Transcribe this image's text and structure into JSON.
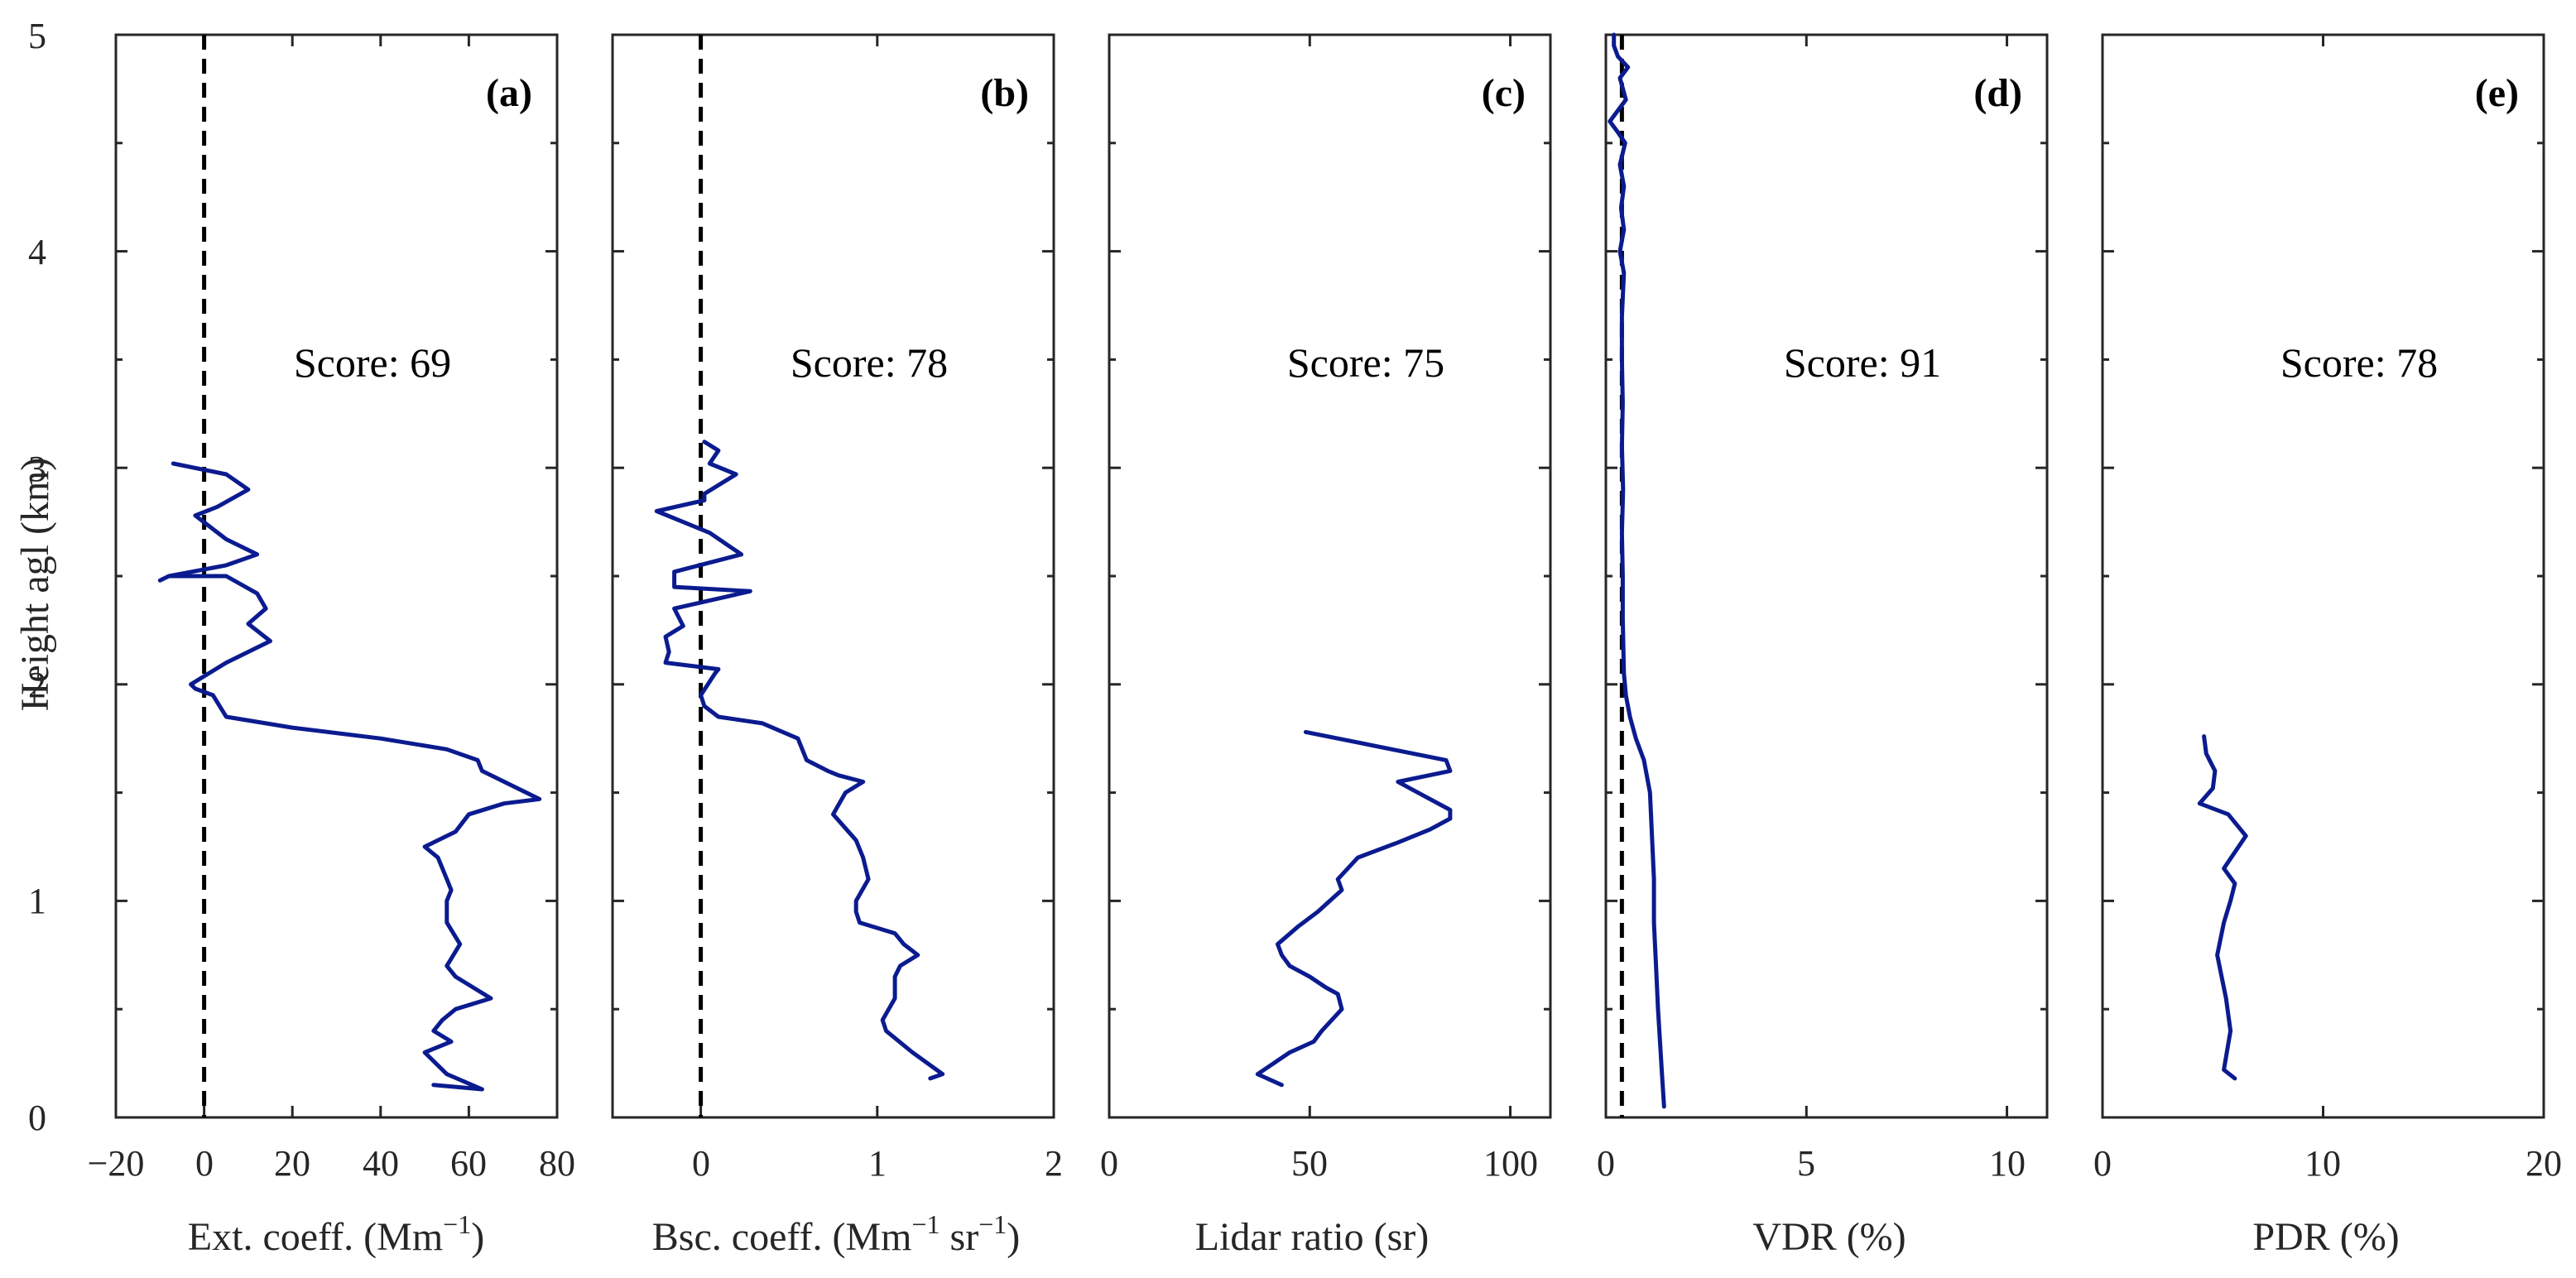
{
  "chart_data": [
    {
      "type": "line",
      "panel": "(a)",
      "score": "Score: 69",
      "xlabel": "Ext. coeff. (Mm",
      "xlabel_sup": "−1",
      "xlabel_tail": ")",
      "ylabel": "Height agl (km)",
      "xlim": [
        -20,
        80
      ],
      "ylim": [
        0,
        5
      ],
      "xticks": [
        -20,
        0,
        20,
        40,
        60,
        80
      ],
      "xtick_labels": [
        "−20",
        "0",
        "20",
        "40",
        "60",
        "80"
      ],
      "yticks": [
        0,
        1,
        2,
        3,
        4,
        5
      ],
      "ytick_labels": [
        "0",
        "1",
        "2",
        "3",
        "4",
        "5"
      ],
      "reference_x": 0,
      "series": [
        {
          "name": "extinction",
          "color": "#0b1b8f",
          "x": [
            52,
            63,
            55,
            50,
            56,
            52,
            54,
            57,
            65,
            57,
            55,
            58,
            55,
            55,
            56,
            55,
            53,
            50,
            57,
            60,
            68,
            76,
            63,
            62,
            55,
            40,
            20,
            5,
            2,
            -2,
            -3,
            5,
            15,
            10,
            14,
            12,
            5,
            -8,
            -10,
            -8,
            5,
            12,
            5,
            -2,
            3,
            10,
            5,
            -7
          ],
          "y": [
            0.15,
            0.13,
            0.2,
            0.3,
            0.35,
            0.4,
            0.45,
            0.5,
            0.55,
            0.65,
            0.7,
            0.8,
            0.9,
            1.0,
            1.05,
            1.1,
            1.2,
            1.25,
            1.32,
            1.4,
            1.45,
            1.47,
            1.6,
            1.65,
            1.7,
            1.75,
            1.8,
            1.85,
            1.95,
            1.98,
            2.0,
            2.1,
            2.2,
            2.28,
            2.35,
            2.42,
            2.5,
            2.5,
            2.48,
            2.5,
            2.55,
            2.6,
            2.67,
            2.78,
            2.82,
            2.9,
            2.97,
            3.02
          ]
        }
      ]
    },
    {
      "type": "line",
      "panel": "(b)",
      "score": "Score: 78",
      "xlabel": "Bsc. coeff. (Mm",
      "xlabel_sup": "−1",
      "xlabel_mid": " sr",
      "xlabel_sup2": "−1",
      "xlabel_tail": ")",
      "xlim": [
        -0.5,
        2
      ],
      "ylim": [
        0,
        5
      ],
      "xticks": [
        0,
        1,
        2
      ],
      "xtick_labels": [
        "0",
        "1",
        "2"
      ],
      "reference_x": 0,
      "series": [
        {
          "name": "backscatter",
          "color": "#0b1b8f",
          "x": [
            1.3,
            1.37,
            1.2,
            1.05,
            1.03,
            1.1,
            1.1,
            1.13,
            1.23,
            1.15,
            1.1,
            0.9,
            0.88,
            0.88,
            0.95,
            0.92,
            0.88,
            0.75,
            0.82,
            0.92,
            0.78,
            0.72,
            0.6,
            0.55,
            0.35,
            0.1,
            0.02,
            0,
            0.08,
            0.1,
            -0.2,
            -0.18,
            -0.2,
            -0.1,
            -0.15,
            0.28,
            -0.15,
            -0.15,
            0.23,
            0.05,
            -0.25,
            0.02,
            0.02,
            0.2,
            0.05,
            0.1,
            0.02
          ],
          "y": [
            0.18,
            0.2,
            0.3,
            0.4,
            0.45,
            0.55,
            0.65,
            0.7,
            0.75,
            0.8,
            0.85,
            0.9,
            0.95,
            1.0,
            1.1,
            1.2,
            1.28,
            1.4,
            1.5,
            1.55,
            1.58,
            1.6,
            1.65,
            1.75,
            1.82,
            1.85,
            1.9,
            1.95,
            2.05,
            2.07,
            2.1,
            2.15,
            2.22,
            2.27,
            2.35,
            2.43,
            2.45,
            2.52,
            2.6,
            2.7,
            2.8,
            2.85,
            2.88,
            2.97,
            3.02,
            3.08,
            3.12
          ]
        }
      ]
    },
    {
      "type": "line",
      "panel": "(c)",
      "score": "Score: 75",
      "xlabel": "Lidar ratio (sr)",
      "xlim": [
        0,
        110
      ],
      "ylim": [
        0,
        5
      ],
      "xticks": [
        0,
        50,
        100
      ],
      "xtick_labels": [
        "0",
        "50",
        "100"
      ],
      "series": [
        {
          "name": "lidar_ratio",
          "color": "#0b1b8f",
          "x": [
            43,
            37,
            45,
            51,
            53,
            58,
            57,
            54,
            50,
            45,
            43,
            42,
            47,
            52,
            55,
            58,
            57,
            62,
            72,
            80,
            85,
            85,
            75,
            72,
            85,
            84,
            49
          ],
          "y": [
            0.15,
            0.2,
            0.3,
            0.35,
            0.4,
            0.5,
            0.57,
            0.6,
            0.65,
            0.7,
            0.75,
            0.8,
            0.88,
            0.95,
            1.0,
            1.05,
            1.1,
            1.2,
            1.27,
            1.33,
            1.38,
            1.42,
            1.52,
            1.55,
            1.6,
            1.65,
            1.78
          ]
        }
      ]
    },
    {
      "type": "line",
      "panel": "(d)",
      "score": "Score: 91",
      "xlabel": "VDR (%)",
      "xlim": [
        0,
        11
      ],
      "ylim": [
        0,
        5
      ],
      "xticks": [
        0,
        5,
        10
      ],
      "xtick_labels": [
        "0",
        "5",
        "10"
      ],
      "reference_x": 0.4,
      "series": [
        {
          "name": "vdr",
          "color": "#0b1b8f",
          "x": [
            1.45,
            1.4,
            1.35,
            1.3,
            1.25,
            1.2,
            1.2,
            1.15,
            1.1,
            0.95,
            0.75,
            0.6,
            0.5,
            0.45,
            0.42,
            0.42,
            0.4,
            0.43,
            0.4,
            0.42,
            0.4,
            0.4,
            0.45,
            0.35,
            0.45,
            0.38,
            0.45,
            0.35,
            0.48,
            0.3,
            0.1,
            0.5,
            0.35,
            0.55,
            0.3,
            0.2,
            0.2
          ],
          "y": [
            0.05,
            0.2,
            0.35,
            0.5,
            0.7,
            0.9,
            1.1,
            1.3,
            1.5,
            1.65,
            1.75,
            1.85,
            1.95,
            2.05,
            2.3,
            2.5,
            2.7,
            2.9,
            3.1,
            3.3,
            3.5,
            3.7,
            3.9,
            4.0,
            4.1,
            4.2,
            4.3,
            4.4,
            4.5,
            4.55,
            4.6,
            4.7,
            4.8,
            4.85,
            4.9,
            4.95,
            5.0
          ]
        }
      ]
    },
    {
      "type": "line",
      "panel": "(e)",
      "score": "Score: 78",
      "xlabel": "PDR (%)",
      "xlim": [
        0,
        20
      ],
      "ylim": [
        0,
        5
      ],
      "xticks": [
        0,
        10,
        20
      ],
      "xtick_labels": [
        "0",
        "10",
        "20"
      ],
      "series": [
        {
          "name": "pdr",
          "color": "#0b1b8f",
          "x": [
            6.0,
            5.5,
            5.8,
            5.6,
            5.2,
            5.5,
            5.8,
            6.0,
            5.5,
            6.5,
            5.7,
            4.4,
            5.0,
            5.1,
            4.7,
            4.6
          ],
          "y": [
            0.18,
            0.22,
            0.4,
            0.55,
            0.75,
            0.9,
            1.0,
            1.08,
            1.15,
            1.3,
            1.4,
            1.45,
            1.52,
            1.6,
            1.68,
            1.76
          ]
        }
      ]
    }
  ]
}
